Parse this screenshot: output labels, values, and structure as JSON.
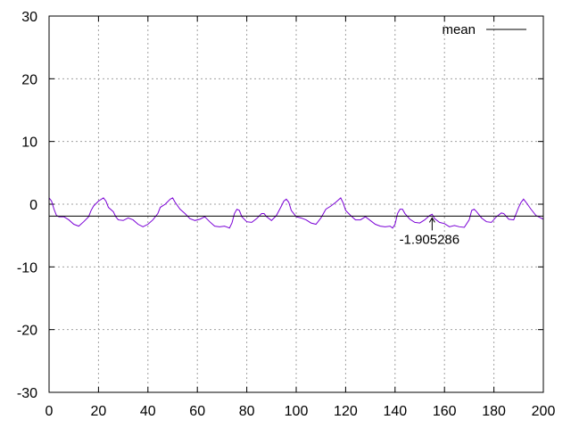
{
  "chart_data": {
    "type": "line",
    "title": "",
    "xlabel": "",
    "ylabel": "",
    "xlim": [
      0,
      200
    ],
    "ylim": [
      -30,
      30
    ],
    "x_ticks": [
      0,
      20,
      40,
      60,
      80,
      100,
      120,
      140,
      160,
      180,
      200
    ],
    "y_ticks": [
      -30,
      -20,
      -10,
      0,
      10,
      20,
      30
    ],
    "grid": true,
    "legend": {
      "position": "top-right",
      "entries": [
        {
          "label": "mean",
          "color": "#000000"
        }
      ]
    },
    "series": [
      {
        "color": "#7a00d6",
        "points": [
          [
            0,
            1.0
          ],
          [
            1,
            0.5
          ],
          [
            2,
            -0.8
          ],
          [
            3,
            -1.8
          ],
          [
            4,
            -2.0
          ],
          [
            6,
            -2.0
          ],
          [
            8,
            -2.5
          ],
          [
            10,
            -3.2
          ],
          [
            12,
            -3.5
          ],
          [
            14,
            -2.8
          ],
          [
            16,
            -2.0
          ],
          [
            17,
            -1.0
          ],
          [
            18,
            -0.3
          ],
          [
            20,
            0.5
          ],
          [
            22,
            1.0
          ],
          [
            23,
            0.5
          ],
          [
            24,
            -0.5
          ],
          [
            26,
            -1.2
          ],
          [
            27,
            -2.0
          ],
          [
            28,
            -2.5
          ],
          [
            30,
            -2.6
          ],
          [
            32,
            -2.2
          ],
          [
            34,
            -2.5
          ],
          [
            36,
            -3.2
          ],
          [
            38,
            -3.6
          ],
          [
            40,
            -3.2
          ],
          [
            42,
            -2.5
          ],
          [
            44,
            -1.5
          ],
          [
            45,
            -0.5
          ],
          [
            47,
            0.0
          ],
          [
            49,
            0.8
          ],
          [
            50,
            1.0
          ],
          [
            51,
            0.3
          ],
          [
            53,
            -0.8
          ],
          [
            55,
            -1.5
          ],
          [
            57,
            -2.3
          ],
          [
            59,
            -2.6
          ],
          [
            61,
            -2.4
          ],
          [
            63,
            -2.0
          ],
          [
            65,
            -2.8
          ],
          [
            67,
            -3.5
          ],
          [
            69,
            -3.6
          ],
          [
            71,
            -3.5
          ],
          [
            73,
            -3.8
          ],
          [
            74,
            -3.0
          ],
          [
            75,
            -1.5
          ],
          [
            76,
            -0.8
          ],
          [
            77,
            -1.0
          ],
          [
            78,
            -2.0
          ],
          [
            80,
            -2.8
          ],
          [
            82,
            -2.9
          ],
          [
            84,
            -2.3
          ],
          [
            86,
            -1.5
          ],
          [
            87,
            -1.5
          ],
          [
            88,
            -2.0
          ],
          [
            90,
            -2.6
          ],
          [
            92,
            -1.8
          ],
          [
            94,
            -0.3
          ],
          [
            95,
            0.5
          ],
          [
            96,
            0.8
          ],
          [
            97,
            0.3
          ],
          [
            98,
            -1.0
          ],
          [
            100,
            -2.0
          ],
          [
            102,
            -2.2
          ],
          [
            104,
            -2.5
          ],
          [
            106,
            -3.0
          ],
          [
            108,
            -3.2
          ],
          [
            110,
            -2.2
          ],
          [
            112,
            -0.8
          ],
          [
            114,
            -0.3
          ],
          [
            116,
            0.3
          ],
          [
            118,
            1.0
          ],
          [
            119,
            0.2
          ],
          [
            120,
            -1.0
          ],
          [
            122,
            -1.8
          ],
          [
            124,
            -2.5
          ],
          [
            126,
            -2.5
          ],
          [
            128,
            -2.0
          ],
          [
            130,
            -2.6
          ],
          [
            132,
            -3.2
          ],
          [
            134,
            -3.5
          ],
          [
            136,
            -3.6
          ],
          [
            138,
            -3.5
          ],
          [
            139,
            -3.8
          ],
          [
            140,
            -3.2
          ],
          [
            141,
            -1.5
          ],
          [
            142,
            -0.8
          ],
          [
            143,
            -0.8
          ],
          [
            144,
            -1.5
          ],
          [
            146,
            -2.4
          ],
          [
            148,
            -2.9
          ],
          [
            150,
            -3.0
          ],
          [
            152,
            -2.5
          ],
          [
            154,
            -1.8
          ],
          [
            155,
            -1.6
          ],
          [
            156,
            -2.3
          ],
          [
            158,
            -2.9
          ],
          [
            160,
            -3.1
          ],
          [
            162,
            -3.6
          ],
          [
            164,
            -3.4
          ],
          [
            166,
            -3.6
          ],
          [
            168,
            -3.7
          ],
          [
            170,
            -2.5
          ],
          [
            171,
            -1.0
          ],
          [
            172,
            -0.8
          ],
          [
            173,
            -1.2
          ],
          [
            175,
            -2.2
          ],
          [
            177,
            -2.8
          ],
          [
            179,
            -2.9
          ],
          [
            181,
            -2.0
          ],
          [
            183,
            -1.4
          ],
          [
            184,
            -1.5
          ],
          [
            186,
            -2.4
          ],
          [
            188,
            -2.5
          ],
          [
            189,
            -1.5
          ],
          [
            190,
            -0.5
          ],
          [
            191,
            0.3
          ],
          [
            192,
            0.8
          ],
          [
            193,
            0.3
          ],
          [
            195,
            -0.8
          ],
          [
            197,
            -1.8
          ],
          [
            199,
            -2.2
          ],
          [
            200,
            -2.4
          ]
        ]
      },
      {
        "name": "mean",
        "color": "#000000",
        "points": [
          [
            0,
            -1.905286
          ],
          [
            200,
            -1.905286
          ]
        ]
      }
    ],
    "annotations": [
      {
        "text": "-1.905286",
        "x": 155,
        "y": -1.905286
      }
    ]
  }
}
